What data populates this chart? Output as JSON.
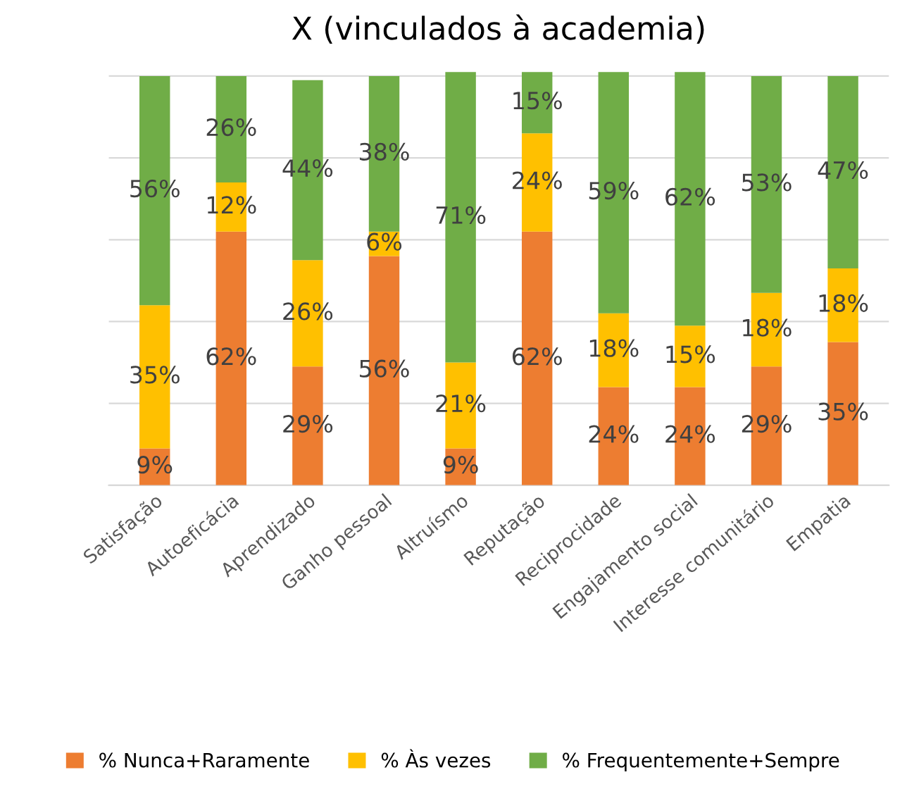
{
  "chart_data": {
    "type": "bar",
    "stacked": true,
    "title": "X (vinculados à academia)",
    "categories": [
      "Satisfação",
      "Autoeficácia",
      "Aprendizado",
      "Ganho pessoal",
      "Altruísmo",
      "Reputação",
      "Reciprocidade",
      "Engajamento social",
      "Interesse comunitário",
      "Empatia"
    ],
    "series": [
      {
        "name": "% Nunca+Raramente",
        "color": "#ed7d31",
        "values": [
          9,
          62,
          29,
          56,
          9,
          62,
          24,
          24,
          29,
          35
        ],
        "value_labels": [
          "9%",
          "62%",
          "29%",
          "56%",
          "9%",
          "62%",
          "24%",
          "24%",
          "29%",
          "35%"
        ]
      },
      {
        "name": "% Às vezes",
        "color": "#ffc000",
        "values": [
          35,
          12,
          26,
          6,
          21,
          24,
          18,
          15,
          18,
          18
        ],
        "value_labels": [
          "35%",
          "12%",
          "26%",
          "6%",
          "21%",
          "24%",
          "18%",
          "15%",
          "18%",
          "18%"
        ]
      },
      {
        "name": "% Frequentemente+Sempre",
        "color": "#70ad47",
        "values": [
          56,
          26,
          44,
          38,
          71,
          15,
          59,
          62,
          53,
          47
        ],
        "value_labels": [
          "56%",
          "26%",
          "44%",
          "38%",
          "71%",
          "15%",
          "59%",
          "62%",
          "53%",
          "47%"
        ]
      }
    ],
    "tick_labels": "x",
    "grid": "y",
    "legend": "bottom"
  }
}
